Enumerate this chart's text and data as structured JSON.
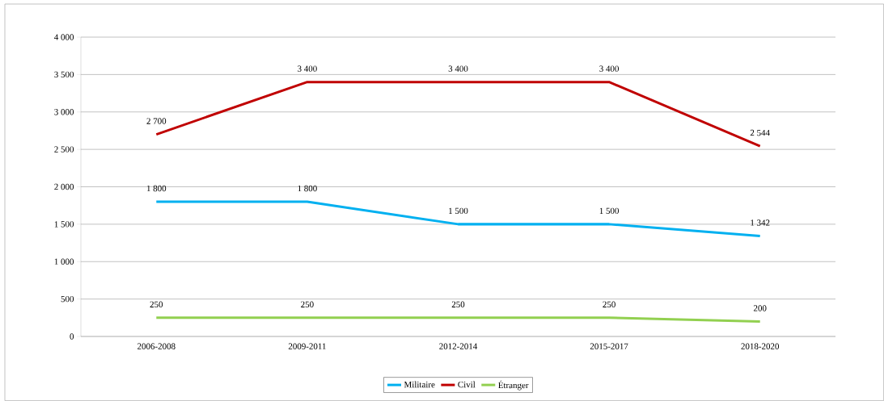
{
  "chart_data": {
    "type": "line",
    "categories": [
      "2006-2008",
      "2009-2011",
      "2012-2014",
      "2015-2017",
      "2018-2020"
    ],
    "series": [
      {
        "name": "Militaire",
        "color": "#00b0f0",
        "values": [
          1800,
          1800,
          1500,
          1500,
          1342
        ],
        "value_labels": [
          "1 800",
          "1 800",
          "1 500",
          "1 500",
          "1 342"
        ]
      },
      {
        "name": "Civil",
        "color": "#c00000",
        "values": [
          2700,
          3400,
          3400,
          3400,
          2544
        ],
        "value_labels": [
          "2 700",
          "3 400",
          "3 400",
          "3 400",
          "2 544"
        ]
      },
      {
        "name": "Étranger",
        "color": "#92d050",
        "values": [
          250,
          250,
          250,
          250,
          200
        ],
        "value_labels": [
          "250",
          "250",
          "250",
          "250",
          "200"
        ]
      }
    ],
    "ylim": [
      0,
      4000
    ],
    "yticks": [
      0,
      500,
      {
        "value": 1000,
        "label": "1 000"
      },
      {
        "value": 1500,
        "label": "1 500"
      },
      {
        "value": 2000,
        "label": "2 000"
      },
      {
        "value": 2500,
        "label": "2 500"
      },
      {
        "value": 3000,
        "label": "3 000"
      },
      {
        "value": 3500,
        "label": "3 500"
      },
      {
        "value": 4000,
        "label": "4 000"
      }
    ],
    "grid": "y",
    "legend": "bottom"
  }
}
